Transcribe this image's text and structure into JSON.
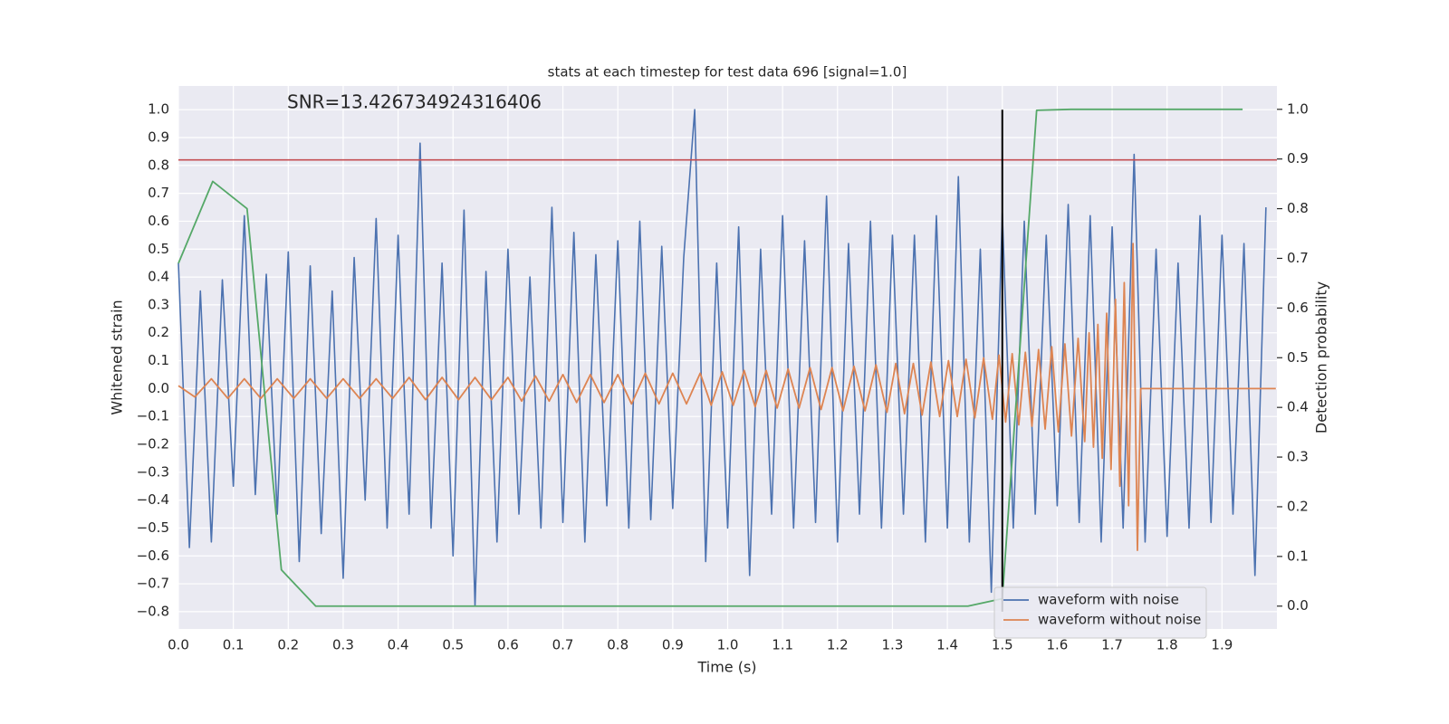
{
  "chart_data": {
    "type": "line",
    "title": "stats at each timestep for test data 696 [signal=1.0]",
    "annotation": "SNR=13.426734924316406",
    "xlabel": "Time (s)",
    "ylabel": "Whitened strain",
    "y2label": "Detection probability",
    "xlim": [
      0,
      2.0
    ],
    "ylim": [
      -0.862,
      1.085
    ],
    "y2lim": [
      -0.046,
      1.047
    ],
    "xticks": [
      {
        "value": 0,
        "label": "0.0"
      },
      {
        "value": 0.1,
        "label": "0.1"
      },
      {
        "value": 0.2,
        "label": "0.2"
      },
      {
        "value": 0.3,
        "label": "0.3"
      },
      {
        "value": 0.4,
        "label": "0.4"
      },
      {
        "value": 0.5,
        "label": "0.5"
      },
      {
        "value": 0.6,
        "label": "0.6"
      },
      {
        "value": 0.7,
        "label": "0.7"
      },
      {
        "value": 0.8,
        "label": "0.8"
      },
      {
        "value": 0.9,
        "label": "0.9"
      },
      {
        "value": 1.0,
        "label": "1.0"
      },
      {
        "value": 1.1,
        "label": "1.1"
      },
      {
        "value": 1.2,
        "label": "1.2"
      },
      {
        "value": 1.3,
        "label": "1.3"
      },
      {
        "value": 1.4,
        "label": "1.4"
      },
      {
        "value": 1.5,
        "label": "1.5"
      },
      {
        "value": 1.6,
        "label": "1.6"
      },
      {
        "value": 1.7,
        "label": "1.7"
      },
      {
        "value": 1.8,
        "label": "1.8"
      },
      {
        "value": 1.9,
        "label": "1.9"
      }
    ],
    "yticks": [
      {
        "value": -0.8,
        "label": "−0.8"
      },
      {
        "value": -0.7,
        "label": "−0.7"
      },
      {
        "value": -0.6,
        "label": "−0.6"
      },
      {
        "value": -0.5,
        "label": "−0.5"
      },
      {
        "value": -0.4,
        "label": "−0.4"
      },
      {
        "value": -0.3,
        "label": "−0.3"
      },
      {
        "value": -0.2,
        "label": "−0.2"
      },
      {
        "value": -0.1,
        "label": "−0.1"
      },
      {
        "value": 0,
        "label": "0.0"
      },
      {
        "value": 0.1,
        "label": "0.1"
      },
      {
        "value": 0.2,
        "label": "0.2"
      },
      {
        "value": 0.3,
        "label": "0.3"
      },
      {
        "value": 0.4,
        "label": "0.4"
      },
      {
        "value": 0.5,
        "label": "0.5"
      },
      {
        "value": 0.6,
        "label": "0.6"
      },
      {
        "value": 0.7,
        "label": "0.7"
      },
      {
        "value": 0.8,
        "label": "0.8"
      },
      {
        "value": 0.9,
        "label": "0.9"
      },
      {
        "value": 1.0,
        "label": "1.0"
      }
    ],
    "y2ticks": [
      {
        "value": 0,
        "label": "0.0"
      },
      {
        "value": 0.1,
        "label": "0.1"
      },
      {
        "value": 0.2,
        "label": "0.2"
      },
      {
        "value": 0.3,
        "label": "0.3"
      },
      {
        "value": 0.4,
        "label": "0.4"
      },
      {
        "value": 0.5,
        "label": "0.5"
      },
      {
        "value": 0.6,
        "label": "0.6"
      },
      {
        "value": 0.7,
        "label": "0.7"
      },
      {
        "value": 0.8,
        "label": "0.8"
      },
      {
        "value": 0.9,
        "label": "0.9"
      },
      {
        "value": 1.0,
        "label": "1.0"
      }
    ],
    "grid": true,
    "legend": "lower right",
    "series": [
      {
        "name": "waveform with noise",
        "color": "#4c72b0",
        "x": [
          0,
          0.02,
          0.04,
          0.06,
          0.08,
          0.1,
          0.12,
          0.14,
          0.16,
          0.18,
          0.2,
          0.22,
          0.24,
          0.26,
          0.28,
          0.3,
          0.32,
          0.34,
          0.36,
          0.38,
          0.4,
          0.42,
          0.44,
          0.46,
          0.48,
          0.5,
          0.52,
          0.54,
          0.56,
          0.58,
          0.6,
          0.62,
          0.64,
          0.66,
          0.68,
          0.7,
          0.72,
          0.74,
          0.76,
          0.78,
          0.8,
          0.82,
          0.84,
          0.86,
          0.88,
          0.9,
          0.92,
          0.94,
          0.96,
          0.98,
          1.0,
          1.02,
          1.04,
          1.06,
          1.08,
          1.1,
          1.12,
          1.14,
          1.16,
          1.18,
          1.2,
          1.22,
          1.24,
          1.26,
          1.28,
          1.3,
          1.32,
          1.34,
          1.36,
          1.38,
          1.4,
          1.42,
          1.44,
          1.46,
          1.48,
          1.5,
          1.52,
          1.54,
          1.56,
          1.58,
          1.6,
          1.62,
          1.64,
          1.66,
          1.68,
          1.7,
          1.72,
          1.74,
          1.76,
          1.78,
          1.8,
          1.82,
          1.84,
          1.86,
          1.88,
          1.9,
          1.92,
          1.94,
          1.96,
          1.98
        ],
        "values": [
          0.45,
          -0.57,
          0.35,
          -0.55,
          0.39,
          -0.35,
          0.62,
          -0.38,
          0.41,
          -0.45,
          0.49,
          -0.62,
          0.44,
          -0.52,
          0.35,
          -0.68,
          0.47,
          -0.4,
          0.61,
          -0.5,
          0.55,
          -0.45,
          0.88,
          -0.5,
          0.45,
          -0.6,
          0.64,
          -0.78,
          0.42,
          -0.55,
          0.5,
          -0.45,
          0.4,
          -0.5,
          0.65,
          -0.48,
          0.56,
          -0.55,
          0.48,
          -0.42,
          0.53,
          -0.5,
          0.6,
          -0.47,
          0.51,
          -0.43,
          0.47,
          1.0,
          -0.62,
          0.45,
          -0.5,
          0.58,
          -0.67,
          0.5,
          -0.45,
          0.62,
          -0.5,
          0.53,
          -0.48,
          0.69,
          -0.55,
          0.52,
          -0.45,
          0.6,
          -0.5,
          0.55,
          -0.45,
          0.55,
          -0.55,
          0.62,
          -0.5,
          0.76,
          -0.55,
          0.5,
          -0.73,
          0.63,
          -0.5,
          0.6,
          -0.45,
          0.55,
          -0.42,
          0.66,
          -0.48,
          0.62,
          -0.55,
          0.58,
          -0.5,
          0.84,
          -0.55,
          0.5,
          -0.53,
          0.45,
          -0.5,
          0.62,
          -0.48,
          0.55,
          -0.45,
          0.52,
          -0.67,
          0.65
        ]
      },
      {
        "name": "waveform without noise",
        "color": "#dd8452",
        "x": [
          0,
          0.03,
          0.06,
          0.09,
          0.12,
          0.15,
          0.18,
          0.21,
          0.24,
          0.27,
          0.3,
          0.33,
          0.36,
          0.39,
          0.42,
          0.45,
          0.48,
          0.51,
          0.54,
          0.57,
          0.6,
          0.625,
          0.65,
          0.675,
          0.7,
          0.725,
          0.75,
          0.775,
          0.8,
          0.825,
          0.85,
          0.875,
          0.9,
          0.925,
          0.95,
          0.97,
          0.99,
          1.01,
          1.03,
          1.05,
          1.07,
          1.09,
          1.11,
          1.13,
          1.15,
          1.17,
          1.19,
          1.21,
          1.23,
          1.25,
          1.27,
          1.29,
          1.306,
          1.322,
          1.338,
          1.354,
          1.37,
          1.386,
          1.402,
          1.418,
          1.434,
          1.45,
          1.466,
          1.482,
          1.494,
          1.506,
          1.518,
          1.53,
          1.542,
          1.554,
          1.566,
          1.578,
          1.59,
          1.602,
          1.614,
          1.626,
          1.638,
          1.65,
          1.658,
          1.666,
          1.674,
          1.682,
          1.69,
          1.698,
          1.706,
          1.714,
          1.722,
          1.73,
          1.738,
          1.746,
          1.752,
          1.998
        ],
        "values": [
          0.01,
          -0.03,
          0.035,
          -0.035,
          0.035,
          -0.035,
          0.035,
          -0.035,
          0.035,
          -0.035,
          0.035,
          -0.035,
          0.035,
          -0.035,
          0.04,
          -0.04,
          0.04,
          -0.04,
          0.04,
          -0.04,
          0.04,
          -0.045,
          0.045,
          -0.045,
          0.05,
          -0.05,
          0.05,
          -0.05,
          0.05,
          -0.055,
          0.055,
          -0.055,
          0.055,
          -0.055,
          0.055,
          -0.06,
          0.06,
          -0.06,
          0.065,
          -0.065,
          0.065,
          -0.07,
          0.07,
          -0.07,
          0.075,
          -0.075,
          0.075,
          -0.08,
          0.08,
          -0.08,
          0.085,
          -0.085,
          0.09,
          -0.09,
          0.09,
          -0.095,
          0.095,
          -0.1,
          0.1,
          -0.1,
          0.105,
          -0.105,
          0.11,
          -0.11,
          0.12,
          -0.12,
          0.125,
          -0.13,
          0.13,
          -0.135,
          0.14,
          -0.145,
          0.15,
          -0.155,
          0.16,
          -0.17,
          0.18,
          -0.19,
          0.2,
          -0.21,
          0.23,
          -0.25,
          0.27,
          -0.29,
          0.32,
          -0.35,
          0.38,
          -0.42,
          0.52,
          -0.58,
          0,
          0
        ]
      },
      {
        "color": "#55a868",
        "axis": "y2",
        "x": [
          0,
          0.0625,
          0.125,
          0.1875,
          0.25,
          1.4375,
          1.5,
          1.5625,
          1.625,
          1.9375
        ],
        "values": [
          0.69,
          0.855,
          0.8,
          0.073,
          0,
          0,
          0.015,
          0.998,
          1.0,
          1.0
        ]
      }
    ],
    "hlines": [
      {
        "y": 0.82,
        "color": "#c44e52"
      }
    ],
    "vlines": [
      {
        "x": 1.5,
        "ymin": -0.8,
        "ymax": 1.0,
        "color": "#000000"
      }
    ]
  }
}
